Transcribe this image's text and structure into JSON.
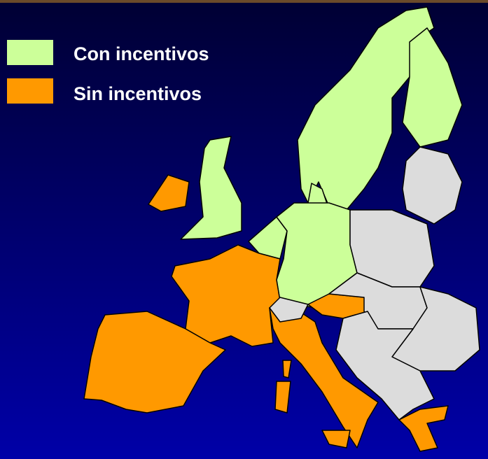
{
  "legend": {
    "items": [
      {
        "label": "Con incentivos",
        "color": "#ccff99"
      },
      {
        "label": "Sin incentivos",
        "color": "#ff9900"
      }
    ]
  }
}
